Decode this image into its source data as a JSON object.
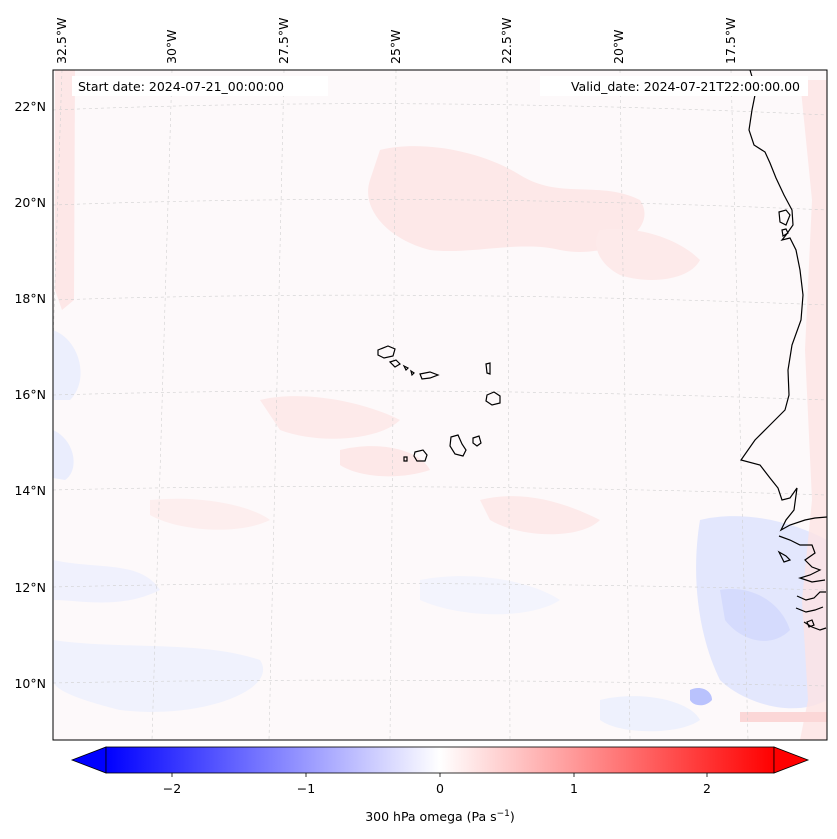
{
  "map": {
    "start_date": "Start date: 2024-07-21_00:00:00",
    "valid_date": "Valid_date: 2024-07-21T22:00:00.00",
    "lon_labels": [
      "32.5°W",
      "30°W",
      "27.5°W",
      "25°W",
      "22.5°W",
      "20°W",
      "17.5°W"
    ],
    "lat_labels": [
      "22°N",
      "20°N",
      "18°N",
      "16°N",
      "14°N",
      "12°N",
      "10°N"
    ],
    "features": [
      "cabo-verde-islands",
      "west-africa-coastline"
    ],
    "colors": {
      "negative": "#0000ff",
      "zero": "#ffffff",
      "positive": "#ff0000",
      "coastline": "#000000",
      "gridline": "#c8c8c8"
    }
  },
  "colorbar": {
    "label": "300 hPa omega (Pa s",
    "label_sup": "−1",
    "label_end": ")",
    "ticks": [
      "−2",
      "−1",
      "0",
      "1",
      "2"
    ],
    "range": [
      -2.75,
      2.75
    ],
    "extend": "both"
  }
}
